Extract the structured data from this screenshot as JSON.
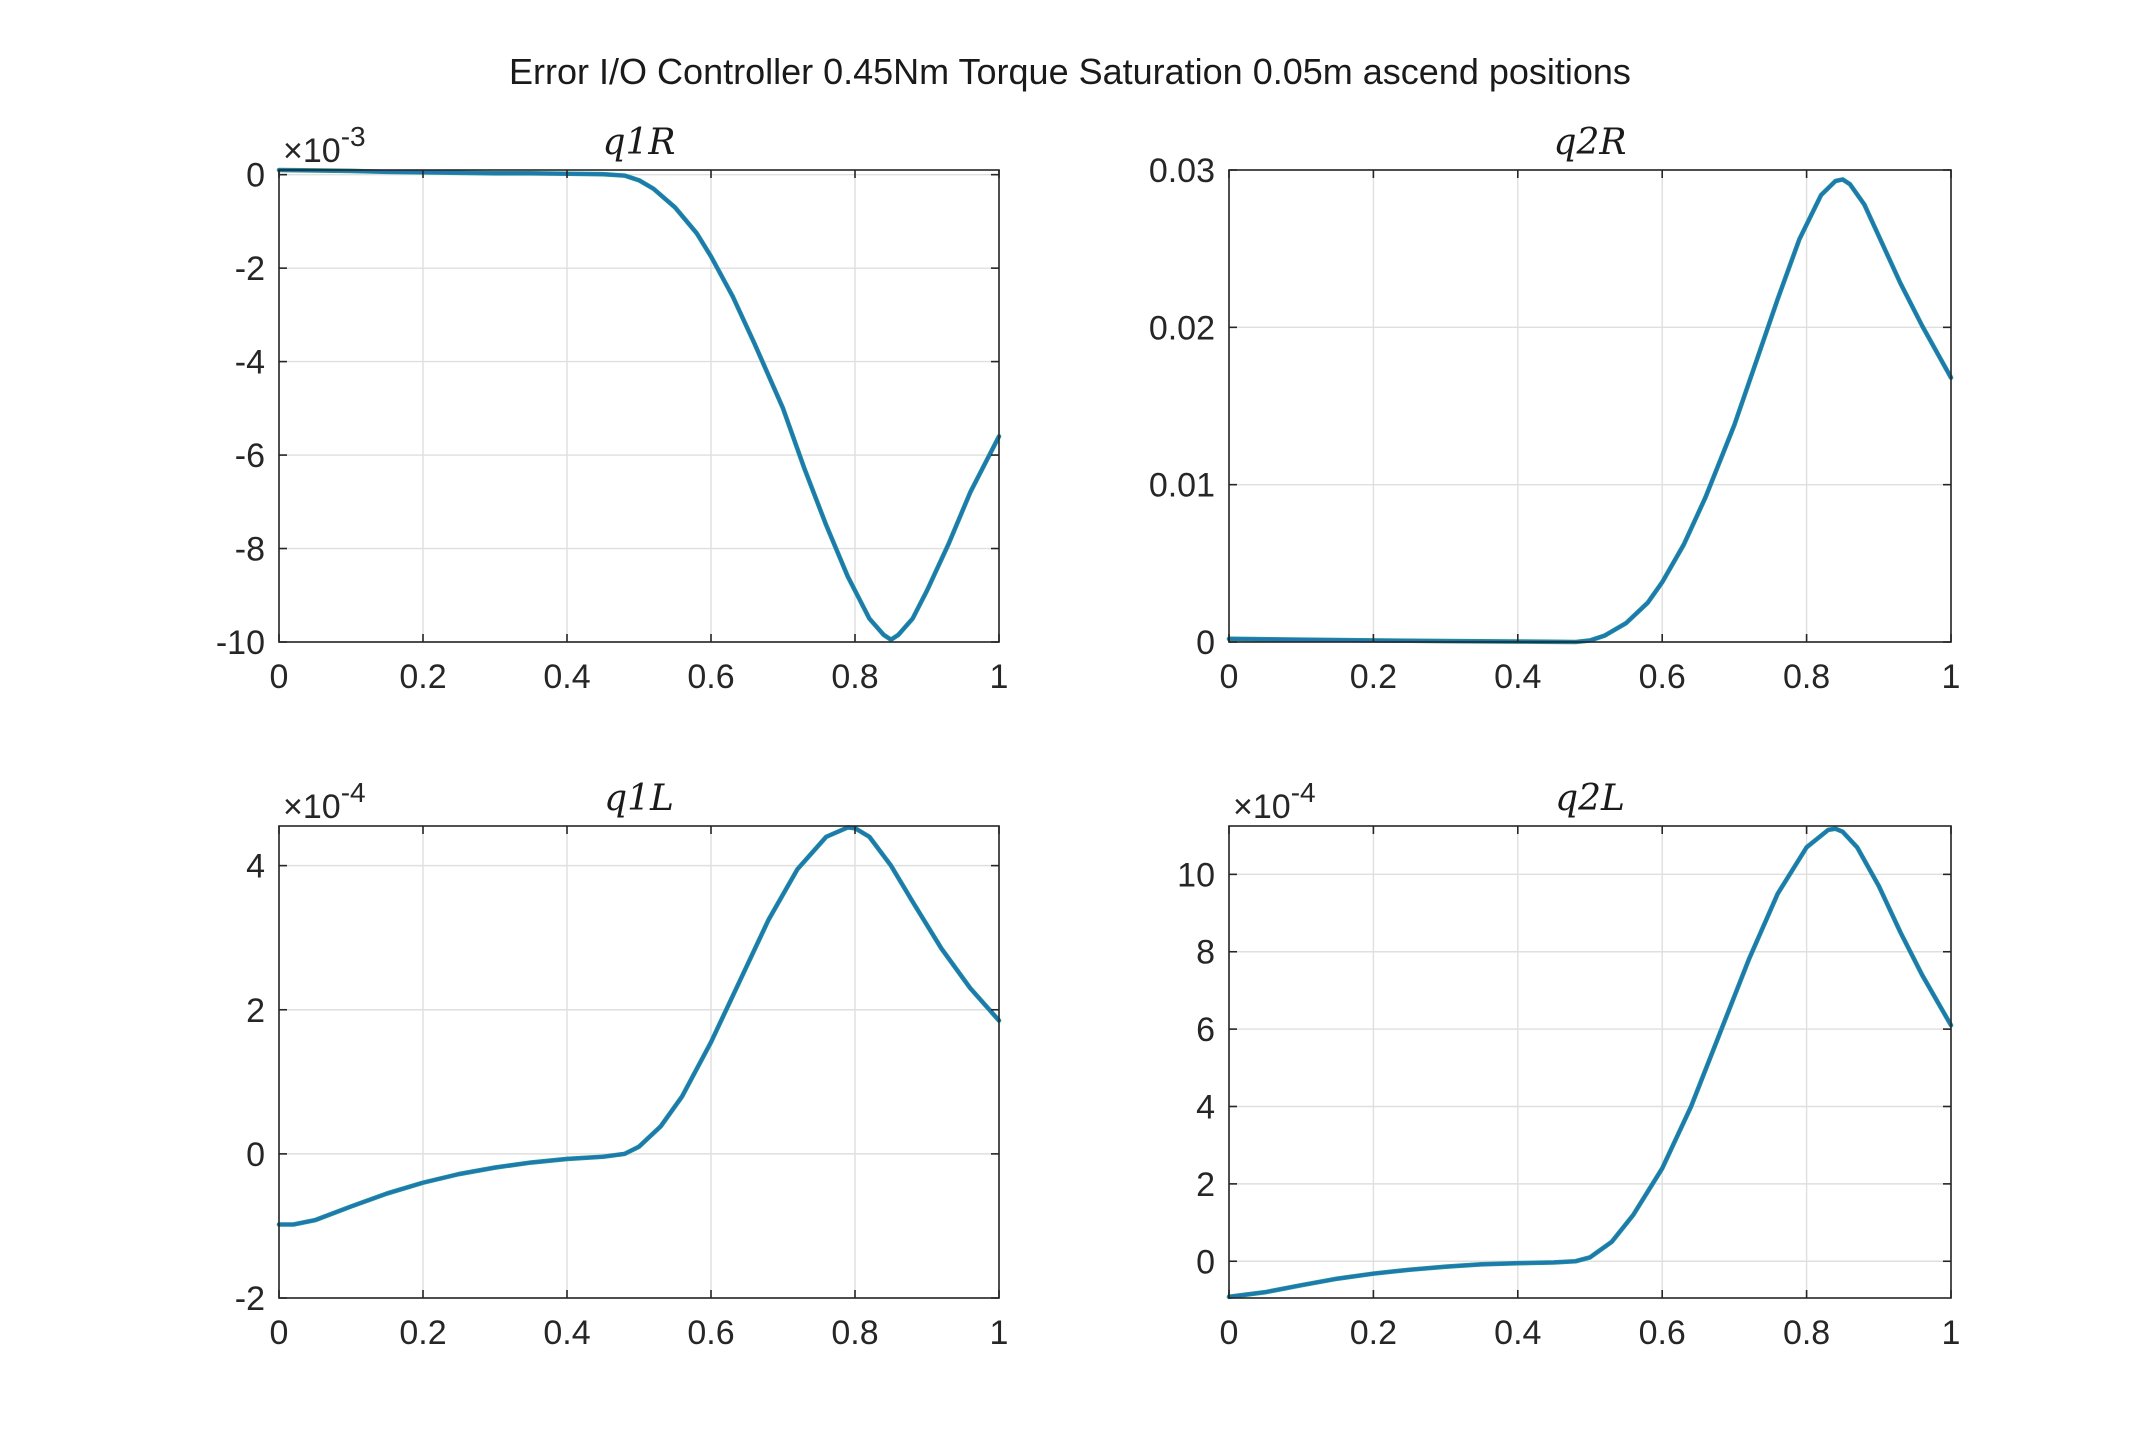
{
  "figure": {
    "title": "Error I/O Controller 0.45Nm Torque Saturation 0.05m ascend positions",
    "series_colors": [
      "#1f9a8a",
      "#1f77b4"
    ]
  },
  "chart_data": [
    {
      "type": "line",
      "title": "q1R",
      "xlabel": "",
      "ylabel": "",
      "xlim": [
        0,
        1
      ],
      "ylim": [
        -10,
        0.1
      ],
      "exponent_label": "×10",
      "exponent_power": "-3",
      "xticks": [
        0,
        0.2,
        0.4,
        0.6,
        0.8,
        1
      ],
      "xtick_labels": [
        "0",
        "0.2",
        "0.4",
        "0.6",
        "0.8",
        "1"
      ],
      "yticks": [
        -10,
        -8,
        -6,
        -4,
        -2,
        0
      ],
      "ytick_labels": [
        "-10",
        "-8",
        "-6",
        "-4",
        "-2",
        "0"
      ],
      "grid": true,
      "x": [
        0,
        0.05,
        0.1,
        0.15,
        0.2,
        0.25,
        0.3,
        0.35,
        0.4,
        0.45,
        0.48,
        0.5,
        0.52,
        0.55,
        0.58,
        0.6,
        0.63,
        0.66,
        0.7,
        0.73,
        0.76,
        0.79,
        0.82,
        0.84,
        0.85,
        0.86,
        0.88,
        0.9,
        0.93,
        0.96,
        1.0
      ],
      "series": [
        {
          "values": [
            0.1,
            0.09,
            0.08,
            0.06,
            0.05,
            0.04,
            0.03,
            0.03,
            0.02,
            0.01,
            -0.02,
            -0.12,
            -0.3,
            -0.7,
            -1.25,
            -1.75,
            -2.6,
            -3.6,
            -5.0,
            -6.3,
            -7.5,
            -8.6,
            -9.5,
            -9.85,
            -9.95,
            -9.85,
            -9.5,
            -8.9,
            -7.9,
            -6.8,
            -5.6
          ]
        },
        {
          "values": [
            0.1,
            0.09,
            0.08,
            0.06,
            0.05,
            0.04,
            0.03,
            0.03,
            0.02,
            0.01,
            -0.02,
            -0.12,
            -0.3,
            -0.7,
            -1.25,
            -1.75,
            -2.6,
            -3.6,
            -5.0,
            -6.3,
            -7.5,
            -8.6,
            -9.5,
            -9.85,
            -9.95,
            -9.85,
            -9.5,
            -8.9,
            -7.9,
            -6.8,
            -5.6
          ]
        }
      ]
    },
    {
      "type": "line",
      "title": "q2R",
      "xlabel": "",
      "ylabel": "",
      "xlim": [
        0,
        1
      ],
      "ylim": [
        0,
        0.03
      ],
      "exponent_label": "",
      "exponent_power": "",
      "xticks": [
        0,
        0.2,
        0.4,
        0.6,
        0.8,
        1
      ],
      "xtick_labels": [
        "0",
        "0.2",
        "0.4",
        "0.6",
        "0.8",
        "1"
      ],
      "yticks": [
        0,
        0.01,
        0.02,
        0.03
      ],
      "ytick_labels": [
        "0",
        "0.01",
        "0.02",
        "0.03"
      ],
      "grid": true,
      "x": [
        0,
        0.1,
        0.2,
        0.3,
        0.4,
        0.45,
        0.48,
        0.5,
        0.52,
        0.55,
        0.58,
        0.6,
        0.63,
        0.66,
        0.7,
        0.73,
        0.76,
        0.79,
        0.82,
        0.84,
        0.85,
        0.86,
        0.88,
        0.9,
        0.93,
        0.96,
        1.0
      ],
      "series": [
        {
          "values": [
            0.0002,
            0.00015,
            0.0001,
            6e-05,
            3e-05,
            1e-05,
            0.0,
            0.0001,
            0.0004,
            0.0012,
            0.0025,
            0.0038,
            0.0062,
            0.0092,
            0.0138,
            0.0178,
            0.0218,
            0.0256,
            0.0284,
            0.0293,
            0.0294,
            0.0291,
            0.0278,
            0.0258,
            0.0228,
            0.0201,
            0.0168
          ]
        },
        {
          "values": [
            0.0002,
            0.00015,
            0.0001,
            6e-05,
            3e-05,
            1e-05,
            0.0,
            0.0001,
            0.0004,
            0.0012,
            0.0025,
            0.0038,
            0.0062,
            0.0092,
            0.0138,
            0.0178,
            0.0218,
            0.0256,
            0.0284,
            0.0293,
            0.0294,
            0.0291,
            0.0278,
            0.0258,
            0.0228,
            0.0201,
            0.0168
          ]
        }
      ]
    },
    {
      "type": "line",
      "title": "q1L",
      "xlabel": "",
      "ylabel": "",
      "xlim": [
        0,
        1
      ],
      "ylim": [
        -2,
        4.55
      ],
      "exponent_label": "×10",
      "exponent_power": "-4",
      "xticks": [
        0,
        0.2,
        0.4,
        0.6,
        0.8,
        1
      ],
      "xtick_labels": [
        "0",
        "0.2",
        "0.4",
        "0.6",
        "0.8",
        "1"
      ],
      "yticks": [
        -2,
        0,
        2,
        4
      ],
      "ytick_labels": [
        "-2",
        "0",
        "2",
        "4"
      ],
      "grid": true,
      "x": [
        0,
        0.02,
        0.05,
        0.1,
        0.15,
        0.2,
        0.25,
        0.3,
        0.35,
        0.4,
        0.45,
        0.48,
        0.5,
        0.53,
        0.56,
        0.6,
        0.64,
        0.68,
        0.72,
        0.76,
        0.79,
        0.8,
        0.82,
        0.85,
        0.88,
        0.92,
        0.96,
        1.0
      ],
      "series": [
        {
          "values": [
            -0.98,
            -0.98,
            -0.92,
            -0.73,
            -0.55,
            -0.4,
            -0.28,
            -0.19,
            -0.12,
            -0.07,
            -0.04,
            0.0,
            0.1,
            0.38,
            0.8,
            1.55,
            2.4,
            3.25,
            3.95,
            4.4,
            4.53,
            4.52,
            4.4,
            4.0,
            3.5,
            2.85,
            2.3,
            1.85
          ]
        },
        {
          "values": [
            -0.98,
            -0.98,
            -0.92,
            -0.73,
            -0.55,
            -0.4,
            -0.28,
            -0.19,
            -0.12,
            -0.07,
            -0.04,
            0.0,
            0.1,
            0.38,
            0.8,
            1.55,
            2.4,
            3.25,
            3.95,
            4.4,
            4.53,
            4.52,
            4.4,
            4.0,
            3.5,
            2.85,
            2.3,
            1.85
          ]
        }
      ]
    },
    {
      "type": "line",
      "title": "q2L",
      "xlabel": "",
      "ylabel": "",
      "xlim": [
        0,
        1
      ],
      "ylim": [
        -0.95,
        11.25
      ],
      "exponent_label": "×10",
      "exponent_power": "-4",
      "xticks": [
        0,
        0.2,
        0.4,
        0.6,
        0.8,
        1
      ],
      "xtick_labels": [
        "0",
        "0.2",
        "0.4",
        "0.6",
        "0.8",
        "1"
      ],
      "yticks": [
        0,
        2,
        4,
        6,
        8,
        10
      ],
      "ytick_labels": [
        "0",
        "2",
        "4",
        "6",
        "8",
        "10"
      ],
      "grid": true,
      "x": [
        0,
        0.05,
        0.1,
        0.15,
        0.2,
        0.25,
        0.3,
        0.35,
        0.4,
        0.45,
        0.48,
        0.5,
        0.53,
        0.56,
        0.6,
        0.64,
        0.68,
        0.72,
        0.76,
        0.8,
        0.83,
        0.84,
        0.85,
        0.87,
        0.9,
        0.93,
        0.96,
        1.0
      ],
      "series": [
        {
          "values": [
            -0.92,
            -0.8,
            -0.62,
            -0.45,
            -0.32,
            -0.22,
            -0.14,
            -0.08,
            -0.05,
            -0.03,
            0.0,
            0.1,
            0.5,
            1.2,
            2.4,
            4.0,
            5.9,
            7.8,
            9.5,
            10.7,
            11.15,
            11.18,
            11.1,
            10.7,
            9.7,
            8.5,
            7.4,
            6.1
          ]
        },
        {
          "values": [
            -0.92,
            -0.8,
            -0.62,
            -0.45,
            -0.32,
            -0.22,
            -0.14,
            -0.08,
            -0.05,
            -0.03,
            0.0,
            0.1,
            0.5,
            1.2,
            2.4,
            4.0,
            5.9,
            7.8,
            9.5,
            10.7,
            11.15,
            11.18,
            11.1,
            10.7,
            9.7,
            8.5,
            7.4,
            6.1
          ]
        }
      ]
    }
  ]
}
